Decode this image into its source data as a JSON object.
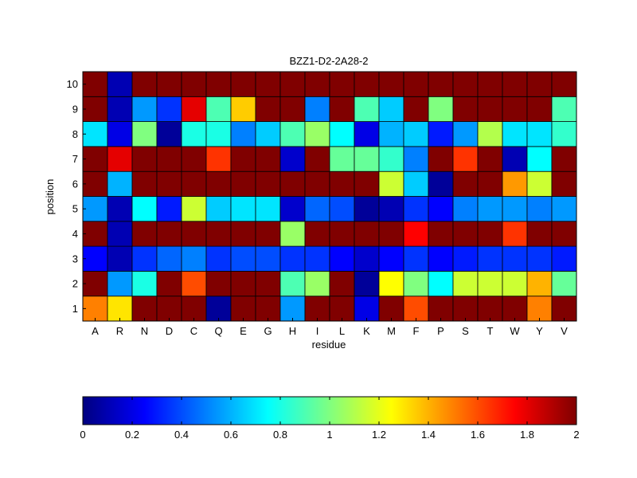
{
  "chart_data": {
    "type": "heatmap",
    "title": "BZZ1-D2-2A28-2",
    "xlabel": "residue",
    "ylabel": "position",
    "x_categories": [
      "A",
      "R",
      "N",
      "D",
      "C",
      "Q",
      "E",
      "G",
      "H",
      "I",
      "L",
      "K",
      "M",
      "F",
      "P",
      "S",
      "T",
      "W",
      "Y",
      "V"
    ],
    "y_categories": [
      "1",
      "2",
      "3",
      "4",
      "5",
      "6",
      "7",
      "8",
      "9",
      "10"
    ],
    "colormap": "jet",
    "clim": [
      0,
      2
    ],
    "colorbar": {
      "location": "bottom",
      "ticks": [
        0,
        0.2,
        0.4,
        0.6,
        0.8,
        1,
        1.2,
        1.4,
        1.6,
        1.8,
        2
      ],
      "tick_labels": [
        "0",
        "0.2",
        "0.4",
        "0.6",
        "0.8",
        "1",
        "1.2",
        "1.4",
        "1.6",
        "1.8",
        "2"
      ]
    },
    "grid": true,
    "values": [
      [
        1.5,
        1.3,
        2.0,
        2.0,
        2.0,
        0.05,
        2.0,
        2.0,
        0.55,
        2.0,
        2.0,
        0.2,
        2.0,
        1.6,
        2.0,
        2.0,
        2.0,
        2.0,
        1.5,
        2.0
      ],
      [
        2.0,
        0.55,
        0.8,
        2.0,
        1.6,
        2.0,
        2.0,
        2.0,
        0.9,
        1.05,
        2.0,
        0.05,
        1.25,
        1.0,
        0.75,
        1.15,
        1.15,
        1.15,
        1.4,
        0.95
      ],
      [
        0.25,
        0.1,
        0.35,
        0.45,
        0.5,
        0.35,
        0.4,
        0.4,
        0.35,
        0.35,
        0.25,
        0.15,
        0.25,
        0.35,
        0.25,
        0.3,
        0.35,
        0.35,
        0.35,
        0.3
      ],
      [
        2.0,
        0.1,
        2.0,
        2.0,
        2.0,
        2.0,
        2.0,
        2.0,
        1.05,
        2.0,
        2.0,
        2.0,
        2.0,
        1.75,
        2.0,
        2.0,
        2.0,
        1.65,
        2.0,
        2.0
      ],
      [
        0.55,
        0.1,
        0.75,
        0.3,
        1.15,
        0.65,
        0.7,
        0.7,
        0.15,
        0.45,
        0.4,
        0.05,
        0.1,
        0.35,
        0.25,
        0.5,
        0.55,
        0.55,
        0.5,
        0.55
      ],
      [
        2.0,
        0.6,
        2.0,
        2.0,
        2.0,
        2.0,
        2.0,
        2.0,
        2.0,
        2.0,
        2.0,
        2.0,
        1.15,
        0.65,
        0.05,
        2.0,
        2.0,
        1.45,
        1.15,
        2.0
      ],
      [
        2.0,
        1.8,
        2.0,
        2.0,
        2.0,
        1.65,
        2.0,
        2.0,
        0.15,
        2.0,
        0.95,
        0.95,
        0.85,
        0.5,
        2.0,
        1.65,
        2.0,
        0.1,
        0.75,
        2.0
      ],
      [
        0.7,
        0.2,
        1.0,
        0.05,
        0.8,
        0.8,
        0.5,
        0.65,
        0.9,
        1.05,
        0.75,
        0.2,
        0.6,
        0.65,
        0.3,
        0.55,
        1.1,
        0.7,
        0.7,
        0.85
      ],
      [
        2.0,
        0.1,
        0.55,
        0.35,
        1.8,
        0.9,
        1.35,
        2.0,
        2.0,
        0.5,
        2.0,
        0.9,
        0.65,
        2.0,
        1.0,
        2.0,
        2.0,
        2.0,
        2.0,
        0.9
      ],
      [
        2.0,
        0.1,
        2.0,
        2.0,
        2.0,
        2.0,
        2.0,
        2.0,
        2.0,
        2.0,
        2.0,
        2.0,
        2.0,
        2.0,
        2.0,
        2.0,
        2.0,
        2.0,
        2.0,
        2.0
      ]
    ]
  }
}
